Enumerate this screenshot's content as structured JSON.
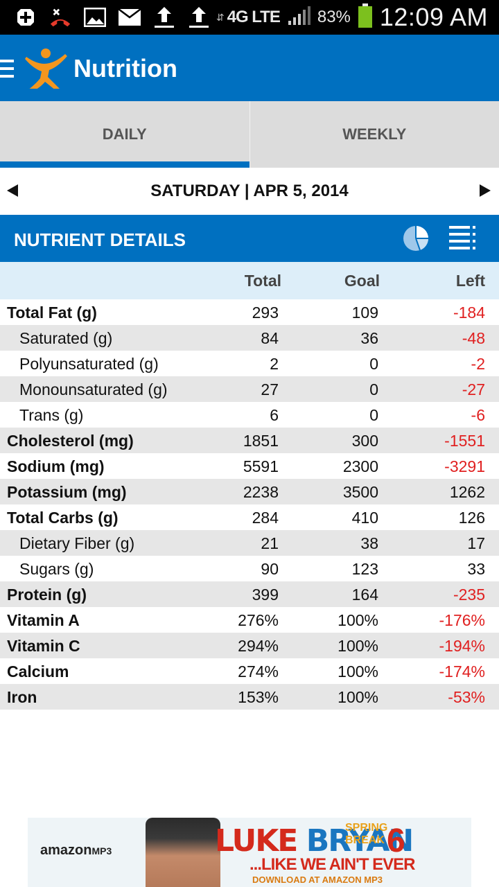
{
  "status_bar": {
    "network": "4G LTE",
    "battery_percent": "83%",
    "time": "12:09 AM",
    "icons": [
      "add-icon",
      "missed-call-icon",
      "image-icon",
      "mail-icon",
      "upload-icon",
      "upload-icon",
      "signal-icon",
      "battery-icon"
    ]
  },
  "app_bar": {
    "title": "Nutrition",
    "menu_icon": "hamburger-menu-icon",
    "logo_icon": "myfitnesspal-logo-icon"
  },
  "tabs": [
    {
      "label": "DAILY",
      "active": true
    },
    {
      "label": "WEEKLY",
      "active": false
    }
  ],
  "date_nav": {
    "date": "SATURDAY | APR 5, 2014",
    "prev_icon": "arrow-left-icon",
    "next_icon": "arrow-right-icon"
  },
  "section": {
    "title": "NUTRIENT DETAILS",
    "pie_icon": "pie-chart-icon",
    "list_icon": "list-view-icon"
  },
  "table": {
    "headers": {
      "total": "Total",
      "goal": "Goal",
      "left": "Left"
    },
    "rows": [
      {
        "name": "Total Fat (g)",
        "total": "293",
        "goal": "109",
        "left": "-184"
      },
      {
        "name": "Saturated (g)",
        "total": "84",
        "goal": "36",
        "left": "-48"
      },
      {
        "name": "Polyunsaturated (g)",
        "total": "2",
        "goal": "0",
        "left": "-2"
      },
      {
        "name": "Monounsaturated (g)",
        "total": "27",
        "goal": "0",
        "left": "-27"
      },
      {
        "name": "Trans (g)",
        "total": "6",
        "goal": "0",
        "left": "-6"
      },
      {
        "name": "Cholesterol (mg)",
        "total": "1851",
        "goal": "300",
        "left": "-1551"
      },
      {
        "name": "Sodium (mg)",
        "total": "5591",
        "goal": "2300",
        "left": "-3291"
      },
      {
        "name": "Potassium (mg)",
        "total": "2238",
        "goal": "3500",
        "left": "1262"
      },
      {
        "name": "Total Carbs (g)",
        "total": "284",
        "goal": "410",
        "left": "126"
      },
      {
        "name": "Dietary Fiber (g)",
        "total": "21",
        "goal": "38",
        "left": "17"
      },
      {
        "name": "Sugars (g)",
        "total": "90",
        "goal": "123",
        "left": "33"
      },
      {
        "name": "Protein (g)",
        "total": "399",
        "goal": "164",
        "left": "-235"
      },
      {
        "name": "Vitamin A",
        "total": "276%",
        "goal": "100%",
        "left": "-176%"
      },
      {
        "name": "Vitamin C",
        "total": "294%",
        "goal": "100%",
        "left": "-194%"
      },
      {
        "name": "Calcium",
        "total": "274%",
        "goal": "100%",
        "left": "-174%"
      },
      {
        "name": "Iron",
        "total": "153%",
        "goal": "100%",
        "left": "-53%"
      }
    ]
  },
  "ad": {
    "brand": "amazon",
    "brand_suffix": "MP3",
    "headline_1": "LUKE",
    "headline_2": "BRYAN",
    "spring": "SPRING",
    "break": "BREAK",
    "number": "6",
    "tagline": "...LIKE WE AIN'T EVER",
    "download": "DOWNLOAD AT AMAZON MP3"
  },
  "colors": {
    "brand_blue": "#0070c0",
    "negative_red": "#e02020",
    "row_shade": "#e6e6e6",
    "header_tint": "#ddeef9"
  }
}
